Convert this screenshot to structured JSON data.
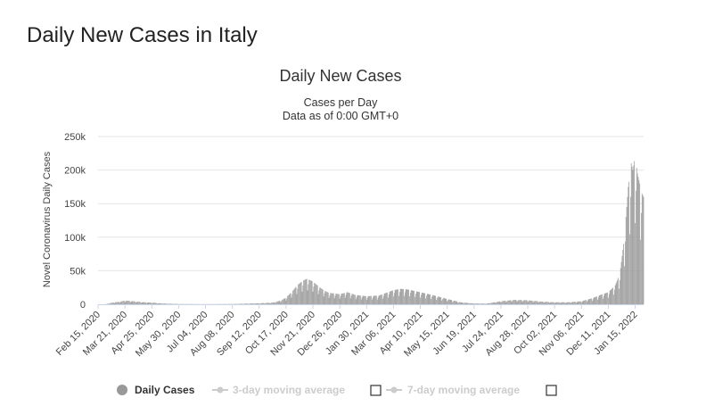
{
  "page": {
    "title": "Daily New Cases in Italy"
  },
  "chart_data": {
    "type": "bar",
    "title": "Daily New Cases",
    "subtitle": "Cases per Day",
    "subtitle2": "Data as of 0:00 GMT+0",
    "xlabel": "",
    "ylabel": "Novel Coronavirus Daily Cases",
    "ylim": [
      0,
      250000
    ],
    "y_ticks": [
      0,
      50000,
      100000,
      150000,
      200000,
      250000
    ],
    "y_tick_labels": [
      "0",
      "50k",
      "100k",
      "150k",
      "200k",
      "250k"
    ],
    "x_start": "2020-02-15",
    "x_end": "2022-01-26",
    "x_tick_labels": [
      "Feb 15, 2020",
      "Mar 21, 2020",
      "Apr 25, 2020",
      "May 30, 2020",
      "Jul 04, 2020",
      "Aug 08, 2020",
      "Sep 12, 2020",
      "Oct 17, 2020",
      "Nov 21, 2020",
      "Dec 26, 2020",
      "Jan 30, 2021",
      "Mar 06, 2021",
      "Apr 10, 2021",
      "May 15, 2021",
      "Jun 19, 2021",
      "Jul 24, 2021",
      "Aug 28, 2021",
      "Oct 02, 2021",
      "Nov 06, 2021",
      "Dec 11, 2021",
      "Jan 15, 2022"
    ],
    "series": [
      {
        "name": "Daily Cases",
        "color": "#999999",
        "dates": [
          "2020-02-15",
          "2020-02-25",
          "2020-03-05",
          "2020-03-15",
          "2020-03-21",
          "2020-03-28",
          "2020-04-05",
          "2020-04-15",
          "2020-04-25",
          "2020-05-05",
          "2020-05-15",
          "2020-05-30",
          "2020-06-20",
          "2020-07-04",
          "2020-08-08",
          "2020-09-12",
          "2020-09-30",
          "2020-10-10",
          "2020-10-17",
          "2020-10-25",
          "2020-11-01",
          "2020-11-08",
          "2020-11-13",
          "2020-11-21",
          "2020-11-28",
          "2020-12-05",
          "2020-12-12",
          "2020-12-20",
          "2020-12-26",
          "2021-01-05",
          "2021-01-15",
          "2021-01-30",
          "2021-02-15",
          "2021-03-06",
          "2021-03-15",
          "2021-03-25",
          "2021-04-10",
          "2021-04-25",
          "2021-05-15",
          "2021-06-01",
          "2021-06-19",
          "2021-07-05",
          "2021-07-24",
          "2021-08-10",
          "2021-08-28",
          "2021-09-15",
          "2021-10-02",
          "2021-10-20",
          "2021-11-06",
          "2021-11-20",
          "2021-12-01",
          "2021-12-11",
          "2021-12-20",
          "2021-12-26",
          "2021-12-31",
          "2022-01-03",
          "2022-01-06",
          "2022-01-08",
          "2022-01-10",
          "2022-01-12",
          "2022-01-15",
          "2022-01-18",
          "2022-01-20",
          "2022-01-22",
          "2022-01-24",
          "2022-01-26"
        ],
        "values": [
          0,
          100,
          2500,
          4000,
          5500,
          5000,
          4000,
          3000,
          2500,
          1500,
          900,
          400,
          250,
          200,
          400,
          1500,
          2500,
          5500,
          10000,
          19000,
          29000,
          35000,
          38000,
          34000,
          27000,
          21000,
          17000,
          16000,
          15000,
          18000,
          14000,
          12000,
          13000,
          21000,
          23000,
          22000,
          18000,
          14000,
          8000,
          3000,
          1200,
          1000,
          4500,
          6500,
          6000,
          4000,
          3000,
          3000,
          4500,
          9000,
          14000,
          18000,
          28000,
          45000,
          90000,
          130000,
          175000,
          190000,
          210000,
          200000,
          220000,
          195000,
          185000,
          175000,
          165000,
          160000
        ]
      },
      {
        "name": "3-day moving average"
      },
      {
        "name": "7-day moving average"
      }
    ],
    "grid": true,
    "legend_position": "bottom"
  }
}
